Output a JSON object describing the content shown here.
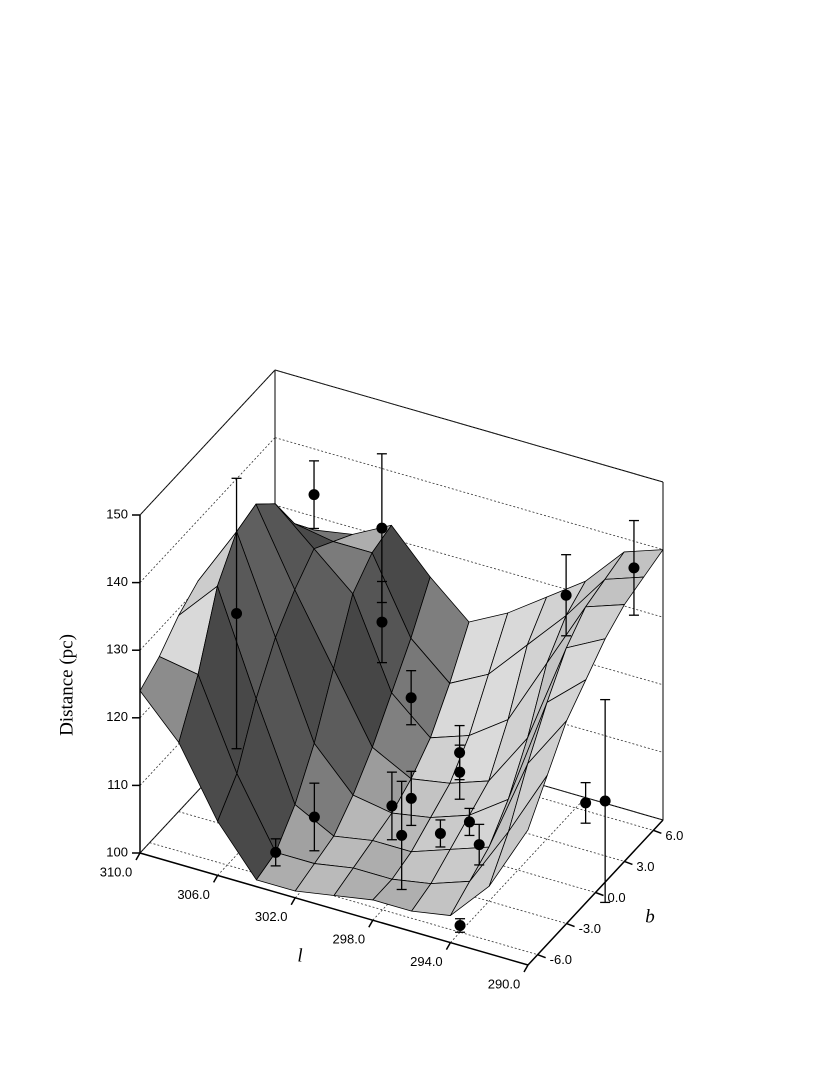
{
  "chart_data": {
    "type": "surface3d",
    "zlabel": "Distance (pc)",
    "xlabel": "l",
    "ylabel": "b",
    "xlim": [
      310,
      290
    ],
    "ylim": [
      -7,
      7
    ],
    "zlim": [
      100,
      150
    ],
    "xticks": [
      {
        "value": 310,
        "label": "310.0"
      },
      {
        "value": 306,
        "label": "306.0"
      },
      {
        "value": 302,
        "label": "302.0"
      },
      {
        "value": 298,
        "label": "298.0"
      },
      {
        "value": 294,
        "label": "294.0"
      },
      {
        "value": 290,
        "label": "290.0"
      }
    ],
    "yticks": [
      {
        "value": -6,
        "label": "-6.0"
      },
      {
        "value": -3,
        "label": "-3.0"
      },
      {
        "value": 0,
        "label": "0.0"
      },
      {
        "value": 3,
        "label": "3.0"
      },
      {
        "value": 6,
        "label": "6.0"
      }
    ],
    "zticks": [
      100,
      110,
      120,
      130,
      140,
      150
    ],
    "grid": true,
    "surface": {
      "l": [
        310,
        308,
        306,
        304,
        302,
        300,
        298,
        296,
        294,
        292,
        290
      ],
      "b": [
        7,
        5,
        3,
        1,
        -1,
        -3,
        -5,
        -7
      ],
      "z": [
        [
          124,
          128,
          129,
          132,
          126,
          121,
          124,
          128,
          132,
          138,
          140
        ],
        [
          126,
          132,
          131,
          131,
          120,
          115,
          118,
          124,
          130,
          137,
          139
        ],
        [
          128,
          138,
          133,
          128,
          115,
          110,
          112,
          116,
          126,
          136,
          138
        ],
        [
          130,
          141,
          130,
          120,
          110,
          107,
          108,
          110,
          118,
          133,
          136
        ],
        [
          131,
          140,
          126,
          112,
          106,
          105,
          106,
          108,
          112,
          128,
          133
        ],
        [
          129,
          135,
          120,
          106,
          103,
          104,
          104,
          106,
          108,
          122,
          130
        ],
        [
          126,
          125,
          112,
          102,
          102,
          103,
          103,
          104,
          106,
          115,
          125
        ],
        [
          124,
          118,
          108,
          101,
          101,
          102,
          103,
          103,
          104,
          110,
          120
        ]
      ]
    },
    "points": {
      "l": [
        309,
        306,
        303,
        302,
        303,
        304,
        300,
        299.5,
        299,
        298,
        298.5,
        297,
        297,
        296,
        295,
        294,
        294,
        292,
        291,
        290
      ],
      "b": [
        1,
        3,
        4,
        2,
        -3,
        -5,
        1,
        -2,
        -1,
        2,
        -3,
        0,
        -2,
        -1,
        -2,
        -6,
        5,
        3,
        6,
        1
      ],
      "values": [
        124,
        141,
        137,
        127,
        105,
        102,
        119,
        108,
        108,
        111,
        106,
        112,
        106,
        107,
        106,
        101,
        133,
        107,
        138,
        112
      ],
      "errors": [
        20,
        5,
        11,
        6,
        5,
        2,
        4,
        5,
        4,
        4,
        8,
        4,
        2,
        2,
        3,
        1,
        6,
        3,
        7,
        15
      ],
      "color": "#000000"
    }
  }
}
